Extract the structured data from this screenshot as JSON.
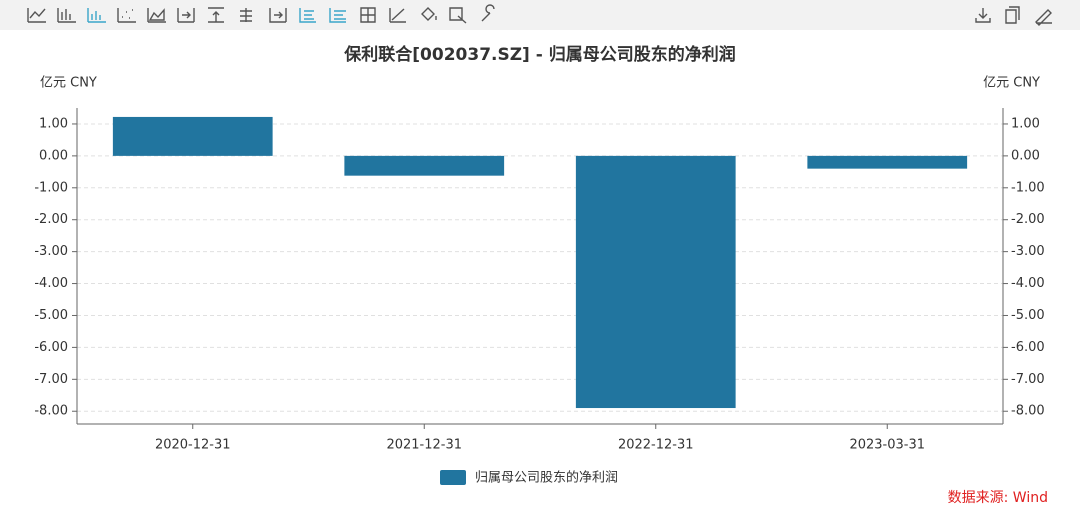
{
  "chart_data": {
    "type": "bar",
    "title": "保利联合[002037.SZ] - 归属母公司股东的净利润",
    "y_unit": "亿元  CNY",
    "y2_unit": "亿元  CNY",
    "categories": [
      "2020-12-31",
      "2021-12-31",
      "2022-12-31",
      "2023-03-31"
    ],
    "series": [
      {
        "name": "归属母公司股东的净利润",
        "color": "#21759f",
        "values": [
          1.22,
          -0.62,
          -7.9,
          -0.4
        ]
      }
    ],
    "ylim": [
      -8.4,
      1.5
    ],
    "yticks": [
      {
        "value": 1,
        "label": "1.00"
      },
      {
        "value": 0,
        "label": "0.00"
      },
      {
        "value": -1,
        "label": "-1.00"
      },
      {
        "value": -2,
        "label": "-2.00"
      },
      {
        "value": -3,
        "label": "-3.00"
      },
      {
        "value": -4,
        "label": "-4.00"
      },
      {
        "value": -5,
        "label": "-5.00"
      },
      {
        "value": -6,
        "label": "-6.00"
      },
      {
        "value": -7,
        "label": "-7.00"
      },
      {
        "value": -8,
        "label": "-8.00"
      }
    ],
    "y2lim": [
      -8.4,
      1.5
    ],
    "y2ticks": [
      {
        "value": 1,
        "label": "1.00"
      },
      {
        "value": 0,
        "label": "0.00"
      },
      {
        "value": -1,
        "label": "-1.00"
      },
      {
        "value": -2,
        "label": "-2.00"
      },
      {
        "value": -3,
        "label": "-3.00"
      },
      {
        "value": -4,
        "label": "-4.00"
      },
      {
        "value": -5,
        "label": "-5.00"
      },
      {
        "value": -6,
        "label": "-6.00"
      },
      {
        "value": -7,
        "label": "-7.00"
      },
      {
        "value": -8,
        "label": "-8.00"
      }
    ],
    "grid": true,
    "legend": "bottom",
    "source": "数据来源: Wind"
  }
}
